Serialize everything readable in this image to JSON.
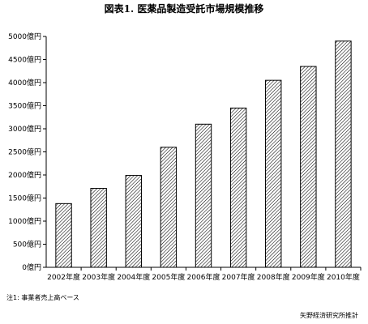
{
  "chart_data": {
    "type": "bar",
    "title": "図表1. 医薬品製造受託市場規模推移",
    "categories": [
      "2002年度",
      "2003年度",
      "2004年度",
      "2005年度",
      "2006年度",
      "2007年度",
      "2008年度",
      "2009年度",
      "2010年度"
    ],
    "values": [
      1380,
      1710,
      1990,
      2600,
      3100,
      3450,
      4050,
      4350,
      4900
    ],
    "ylim": [
      0,
      5000
    ],
    "yticks": [
      0,
      500,
      1000,
      1500,
      2000,
      2500,
      3000,
      3500,
      4000,
      4500,
      5000
    ],
    "ytick_labels": [
      "0億円",
      "500億円",
      "1000億円",
      "1500億円",
      "2000億円",
      "2500億円",
      "3000億円",
      "3500億円",
      "4000億円",
      "4500億円",
      "5000億円"
    ],
    "grid": false,
    "bar_fill": "diagonal-hatch",
    "footnote": "注1: 事業者売上高ベース",
    "source": "矢野経済研究所推計"
  }
}
